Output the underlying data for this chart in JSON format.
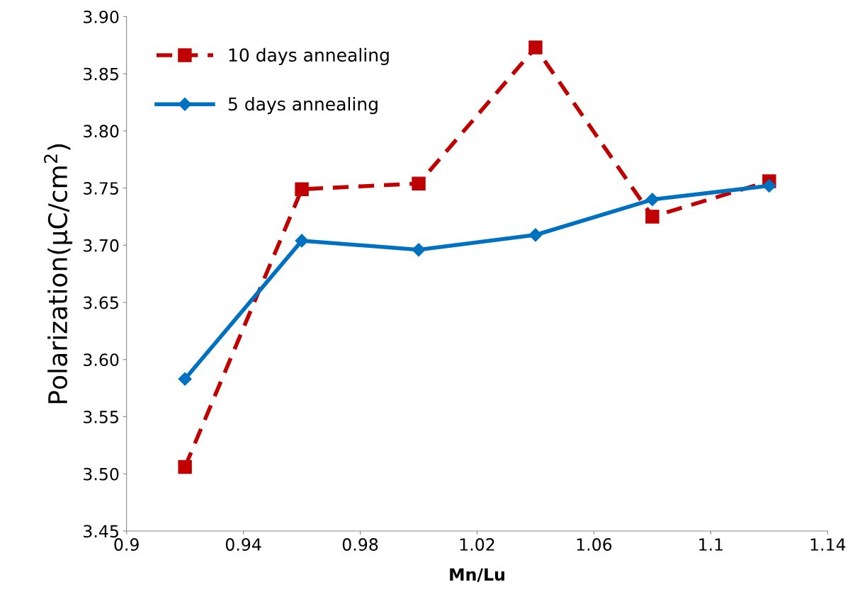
{
  "chart_data": {
    "type": "line",
    "xlabel": "Mn/Lu",
    "ylabel": "Polarization(μC/cm$^{2}$)",
    "x": [
      0.92,
      0.96,
      1.0,
      1.04,
      1.08,
      1.12
    ],
    "series": [
      {
        "name": "10 days annealing",
        "color": "#c00000",
        "values": [
          3.506,
          3.749,
          3.754,
          3.873,
          3.725,
          3.756
        ],
        "marker": "square",
        "line_style": "dashed"
      },
      {
        "name": "5 days annealing",
        "color": "#0070c0",
        "values": [
          3.583,
          3.704,
          3.696,
          3.709,
          3.74,
          3.752
        ],
        "marker": "diamond",
        "line_style": "solid"
      }
    ],
    "xlim": [
      0.9,
      1.14
    ],
    "xticks": [
      0.9,
      0.94,
      0.98,
      1.02,
      1.06,
      1.1,
      1.14
    ],
    "ylim": [
      3.45,
      3.9
    ],
    "yticks": [
      {
        "value": 3.45,
        "label": "3.45"
      },
      {
        "value": 3.5,
        "label": "3.50"
      },
      {
        "value": 3.55,
        "label": "3.55"
      },
      {
        "value": 3.6,
        "label": "3.60"
      },
      {
        "value": 3.65,
        "label": "3.65"
      },
      {
        "value": 3.7,
        "label": "3.70"
      },
      {
        "value": 3.75,
        "label": "3.75"
      },
      {
        "value": 3.8,
        "label": "3.80"
      },
      {
        "value": 3.85,
        "label": "3.85"
      },
      {
        "value": 3.9,
        "label": "3.90"
      }
    ],
    "grid": false,
    "legend": "top left"
  }
}
